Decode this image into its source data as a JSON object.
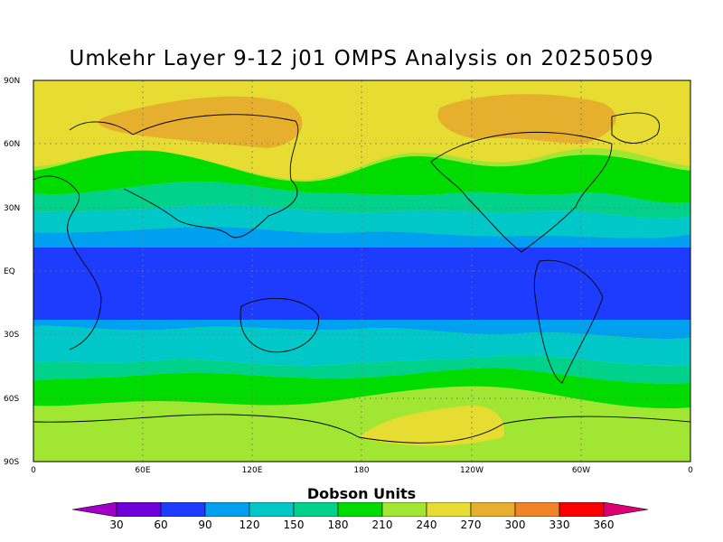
{
  "title": "Umkehr Layer 9-12 j01 OMPS Analysis on 20250509",
  "lat_labels": [
    "90N",
    "60N",
    "30N",
    "EQ",
    "30S",
    "60S",
    "90S"
  ],
  "lon_labels": [
    "0",
    "60E",
    "120E",
    "180",
    "120W",
    "60W",
    "0"
  ],
  "colorbar": {
    "units": "Dobson Units",
    "ticks": [
      "30",
      "60",
      "90",
      "120",
      "150",
      "180",
      "210",
      "240",
      "270",
      "300",
      "330",
      "360"
    ],
    "colors": [
      "#a000c8",
      "#6e00dc",
      "#1e3cff",
      "#00a0f0",
      "#00c8c8",
      "#00d28c",
      "#00dc00",
      "#a0e632",
      "#e6dc32",
      "#e6af2d",
      "#f08228",
      "#fa0000",
      "#dc0073"
    ]
  },
  "chart_data": {
    "type": "heatmap",
    "title": "Umkehr Layer 9-12 j01 OMPS Analysis on 20250509",
    "legend_label": "Dobson Units",
    "value_levels": [
      30,
      60,
      90,
      120,
      150,
      180,
      210,
      240,
      270,
      300,
      330,
      360
    ],
    "lat_range": [
      -90,
      90
    ],
    "lon_range": [
      0,
      360
    ],
    "zonal_pattern": [
      {
        "lat_band": "90N-70N",
        "value_class": "240-300"
      },
      {
        "lat_band": "70N-50N",
        "value_class": "210-240"
      },
      {
        "lat_band": "50N-30N",
        "value_class": "150-210"
      },
      {
        "lat_band": "30N-15N",
        "value_class": "90-150"
      },
      {
        "lat_band": "15N-20S",
        "value_class": "60-90"
      },
      {
        "lat_band": "20S-40S",
        "value_class": "90-150"
      },
      {
        "lat_band": "40S-55S",
        "value_class": "150-210"
      },
      {
        "lat_band": "55S-90S",
        "value_class": "210-270"
      }
    ]
  }
}
